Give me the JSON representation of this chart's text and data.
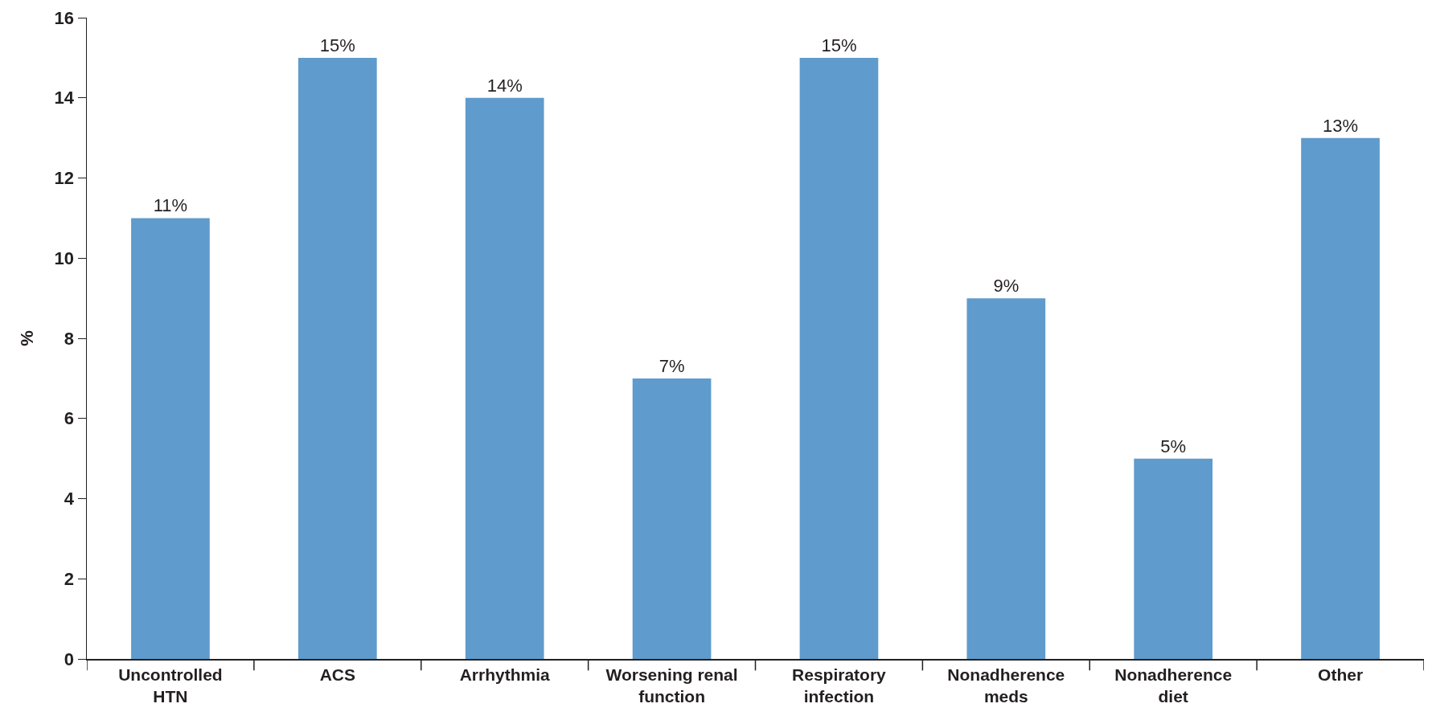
{
  "chart_data": {
    "type": "bar",
    "ylabel": "%",
    "categories": [
      "Uncontrolled HTN",
      "ACS",
      "Arrhythmia",
      "Worsening renal function",
      "Respiratory infection",
      "Nonadherence meds",
      "Nonadherence diet",
      "Other"
    ],
    "values": [
      11,
      15,
      14,
      7,
      15,
      9,
      5,
      13
    ],
    "value_labels": [
      "11%",
      "15%",
      "14%",
      "7%",
      "15%",
      "9%",
      "5%",
      "13%"
    ],
    "color": "#5f9bcc",
    "ylim": [
      0,
      16
    ],
    "yticks": [
      0,
      2,
      4,
      6,
      8,
      10,
      12,
      14,
      16
    ],
    "grid": false
  }
}
